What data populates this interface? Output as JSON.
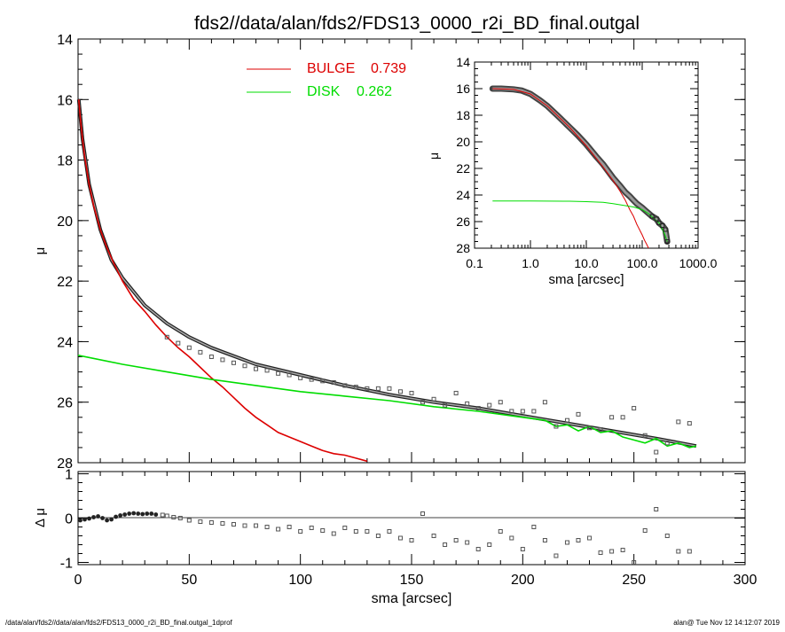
{
  "title": "fds2//data/alan/fds2/FDS13_0000_r2i_BD_final.outgal",
  "footer_left": "/data/alan/fds2//data/alan/fds2/FDS13_0000_r2i_BD_final.outgal_1dprof",
  "footer_right": "alan@  Tue Nov 12 14:12:07 2019",
  "colors": {
    "bulge": "#dd0000",
    "disk": "#00dd00",
    "total": "#555555",
    "points": "#555555"
  },
  "chart_data": [
    {
      "type": "line",
      "panel": "main",
      "xlabel": "",
      "ylabel": "μ",
      "xlim": [
        0,
        300
      ],
      "ylim": [
        28,
        14
      ],
      "yticks": [
        "14",
        "16",
        "18",
        "20",
        "22",
        "24",
        "26",
        "28"
      ],
      "legend": [
        {
          "name": "BULGE",
          "value": "0.739"
        },
        {
          "name": "DISK",
          "value": "0.262"
        }
      ],
      "legend_position": "top-center",
      "series": [
        {
          "name": "BULGE",
          "x": [
            0.3,
            1,
            2,
            3,
            5,
            7,
            10,
            13,
            16,
            20,
            25,
            30,
            35,
            40,
            45,
            50,
            55,
            60,
            65,
            70,
            75,
            80,
            85,
            90,
            95,
            100,
            105,
            110,
            115,
            120,
            125,
            130
          ],
          "y": [
            16.0,
            16.6,
            17.3,
            17.9,
            18.8,
            19.5,
            20.3,
            20.9,
            21.4,
            22.0,
            22.6,
            23.0,
            23.45,
            23.85,
            24.2,
            24.5,
            24.85,
            25.2,
            25.5,
            25.85,
            26.2,
            26.5,
            26.75,
            27.0,
            27.15,
            27.3,
            27.45,
            27.6,
            27.7,
            27.75,
            27.85,
            27.95
          ]
        },
        {
          "name": "DISK",
          "x": [
            0,
            20,
            40,
            60,
            80,
            100,
            120,
            140,
            160,
            180,
            200,
            210,
            215,
            220,
            225,
            230,
            235,
            240,
            245,
            250,
            255,
            260,
            265,
            270,
            275,
            278
          ],
          "y": [
            24.45,
            24.75,
            25.0,
            25.25,
            25.45,
            25.65,
            25.8,
            25.95,
            26.15,
            26.3,
            26.5,
            26.6,
            26.8,
            26.75,
            26.95,
            26.8,
            27.0,
            26.95,
            27.15,
            27.25,
            27.35,
            27.2,
            27.45,
            27.35,
            27.5,
            27.45
          ]
        },
        {
          "name": "TOTAL",
          "x": [
            0.3,
            2,
            5,
            10,
            15,
            20,
            30,
            40,
            50,
            60,
            80,
            100,
            120,
            140,
            160,
            180,
            200,
            220,
            240,
            260,
            278
          ],
          "y": [
            16.0,
            17.3,
            18.8,
            20.3,
            21.3,
            21.9,
            22.8,
            23.4,
            23.85,
            24.2,
            24.75,
            25.1,
            25.45,
            25.75,
            26.0,
            26.2,
            26.45,
            26.7,
            26.95,
            27.2,
            27.45
          ]
        },
        {
          "name": "DATA",
          "x": [
            40,
            45,
            50,
            55,
            60,
            65,
            70,
            75,
            80,
            85,
            90,
            95,
            100,
            105,
            110,
            115,
            120,
            125,
            130,
            135,
            140,
            145,
            150,
            155,
            160,
            165,
            170,
            175,
            180,
            185,
            190,
            195,
            200,
            205,
            210,
            215,
            220,
            225,
            230,
            235,
            240,
            245,
            250,
            255,
            260,
            265,
            270,
            275
          ],
          "y": [
            23.85,
            24.05,
            24.2,
            24.35,
            24.5,
            24.6,
            24.7,
            24.8,
            24.9,
            24.95,
            25.05,
            25.1,
            25.2,
            25.25,
            25.3,
            25.35,
            25.45,
            25.5,
            25.55,
            25.55,
            25.55,
            25.65,
            25.7,
            26.0,
            25.9,
            26.1,
            25.7,
            26.05,
            26.2,
            26.1,
            26.0,
            26.3,
            26.3,
            26.3,
            26.0,
            26.8,
            26.6,
            26.4,
            26.85,
            26.9,
            26.5,
            26.5,
            26.2,
            27.1,
            27.65,
            27.35,
            26.65,
            26.7
          ]
        }
      ]
    },
    {
      "type": "scatter",
      "panel": "residuals",
      "xlabel": "sma [arcsec]",
      "ylabel": "Δ μ",
      "xlim": [
        0,
        300
      ],
      "ylim": [
        -1.05,
        1.05
      ],
      "xticks": [
        "0",
        "50",
        "100",
        "150",
        "200",
        "250",
        "300"
      ],
      "yticks": [
        "1",
        "0",
        "-1"
      ],
      "series": [
        {
          "name": "RESIDUALS",
          "x": [
            1,
            3,
            5,
            7,
            9,
            11,
            13,
            15,
            17,
            19,
            21,
            23,
            25,
            27,
            29,
            31,
            33,
            35,
            38,
            40,
            43,
            46,
            50,
            55,
            60,
            65,
            70,
            75,
            80,
            85,
            90,
            95,
            100,
            105,
            110,
            115,
            120,
            125,
            130,
            135,
            140,
            145,
            150,
            155,
            160,
            165,
            170,
            175,
            180,
            185,
            190,
            195,
            200,
            205,
            210,
            215,
            220,
            225,
            230,
            235,
            240,
            245,
            250,
            255,
            260,
            265,
            270,
            275
          ],
          "y": [
            -0.05,
            -0.03,
            -0.01,
            0.02,
            0.04,
            0.0,
            -0.05,
            -0.03,
            0.03,
            0.06,
            0.08,
            0.1,
            0.11,
            0.1,
            0.09,
            0.1,
            0.1,
            0.08,
            0.07,
            0.05,
            0.02,
            0.0,
            -0.05,
            -0.08,
            -0.1,
            -0.12,
            -0.14,
            -0.17,
            -0.17,
            -0.2,
            -0.25,
            -0.2,
            -0.3,
            -0.22,
            -0.28,
            -0.35,
            -0.22,
            -0.3,
            -0.3,
            -0.4,
            -0.3,
            -0.45,
            -0.5,
            0.1,
            -0.4,
            -0.6,
            -0.5,
            -0.55,
            -0.7,
            -0.6,
            -0.3,
            -0.45,
            -0.7,
            -0.2,
            -0.5,
            -0.85,
            -0.55,
            -0.5,
            -0.45,
            -0.78,
            -0.75,
            -0.72,
            -1.0,
            -0.28,
            0.2,
            -0.4,
            -0.75,
            -0.75
          ]
        }
      ]
    },
    {
      "type": "line",
      "panel": "inset",
      "xlabel": "sma [arcsec]",
      "ylabel": "μ",
      "xscale": "log",
      "xlim": [
        0.1,
        1000
      ],
      "ylim": [
        28,
        14
      ],
      "xticks": [
        "0.1",
        "1.0",
        "10.0",
        "100.0",
        "1000.0"
      ],
      "yticks": [
        "14",
        "16",
        "18",
        "20",
        "22",
        "24",
        "26",
        "28"
      ],
      "series": [
        {
          "name": "DATA",
          "x": [
            0.21,
            0.3,
            0.5,
            0.7,
            1,
            1.5,
            2,
            3,
            5,
            7,
            10,
            15,
            20,
            30,
            40,
            50,
            60,
            70,
            80,
            100,
            120,
            150,
            180,
            200,
            230,
            260,
            280
          ],
          "y": [
            16.0,
            16.0,
            16.05,
            16.15,
            16.4,
            16.9,
            17.3,
            18.0,
            18.9,
            19.5,
            20.2,
            21.1,
            21.7,
            22.7,
            23.3,
            23.8,
            24.1,
            24.4,
            24.65,
            24.95,
            25.25,
            25.6,
            25.8,
            26.1,
            26.3,
            26.6,
            27.5
          ]
        },
        {
          "name": "BULGE",
          "x": [
            0.21,
            0.5,
            1,
            2,
            5,
            10,
            20,
            30,
            40,
            50,
            60,
            70,
            80,
            100,
            110,
            120,
            130
          ],
          "y": [
            16.0,
            16.05,
            16.4,
            17.3,
            18.9,
            20.3,
            21.9,
            22.9,
            23.7,
            24.4,
            25.1,
            25.6,
            26.2,
            27.0,
            27.4,
            27.7,
            28.0
          ]
        },
        {
          "name": "DISK",
          "x": [
            0.21,
            1,
            5,
            10,
            20,
            30,
            50,
            70,
            100,
            130,
            160,
            200,
            250,
            280
          ],
          "y": [
            24.45,
            24.45,
            24.47,
            24.5,
            24.55,
            24.65,
            24.8,
            24.9,
            25.1,
            25.4,
            25.75,
            26.1,
            26.9,
            27.5
          ]
        }
      ]
    }
  ]
}
